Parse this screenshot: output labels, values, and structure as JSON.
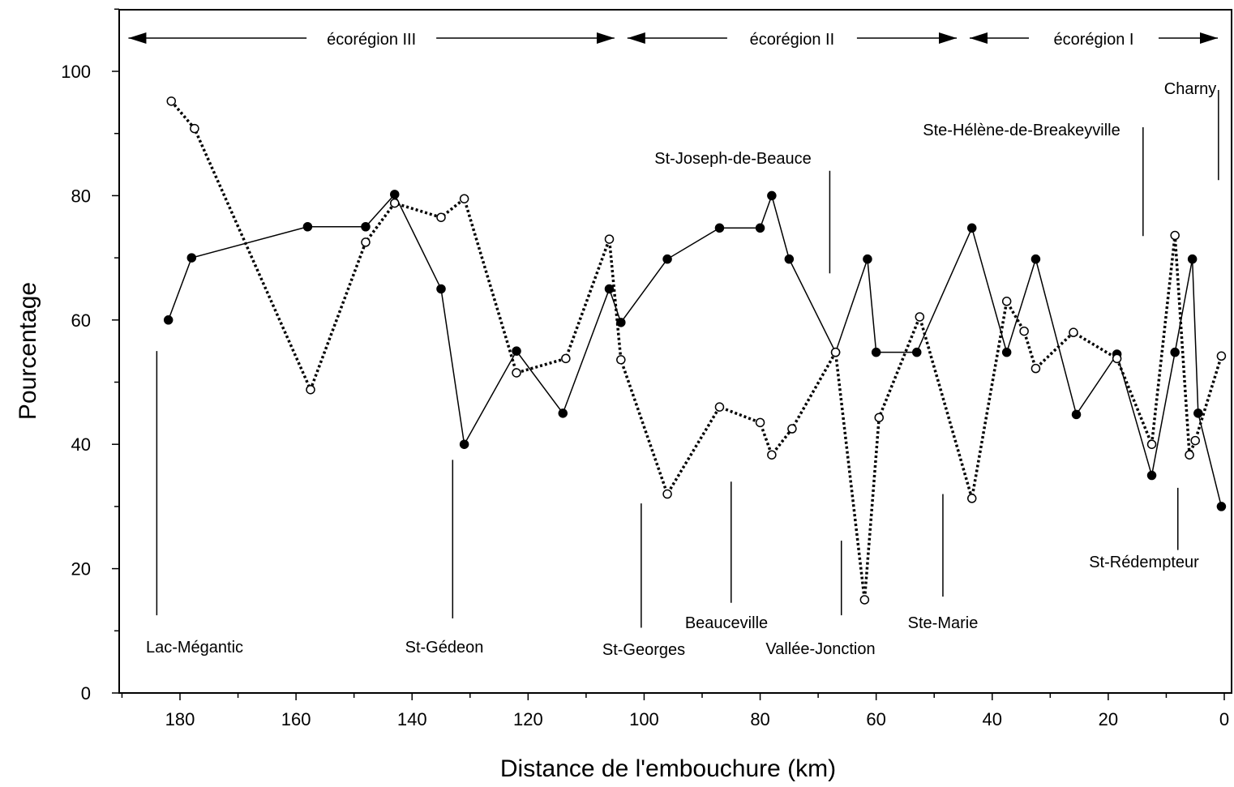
{
  "chart_data": {
    "type": "line",
    "title": "",
    "xlabel": "Distance de l'embouchure (km)",
    "ylabel": "Pourcentage",
    "xlim": [
      190,
      0
    ],
    "ylim": [
      0,
      110
    ],
    "x_reversed": true,
    "x_ticks": [
      "180",
      "160",
      "140",
      "120",
      "100",
      "80",
      "60",
      "40",
      "20",
      "0"
    ],
    "y_ticks": [
      "0",
      "20",
      "40",
      "60",
      "80",
      "100"
    ],
    "grid": false,
    "series": [
      {
        "style": "solid line, filled circles",
        "color": "#000000",
        "x": [
          182,
          178,
          158,
          148,
          143,
          135,
          131,
          122,
          114,
          106,
          104,
          96,
          87,
          80,
          78,
          75,
          67,
          61.5,
          60,
          53,
          43.5,
          37.5,
          32.5,
          25.5,
          18.5,
          12.5,
          8.5,
          5.5,
          4.5,
          0.5
        ],
        "y": [
          60,
          70,
          75,
          75,
          80.2,
          65,
          40,
          55,
          45,
          65,
          59.6,
          69.8,
          74.8,
          74.8,
          80,
          69.8,
          54.8,
          69.8,
          54.8,
          54.8,
          74.8,
          54.8,
          69.8,
          44.8,
          54.5,
          35,
          54.8,
          69.8,
          45,
          30
        ]
      },
      {
        "style": "dotted line, open circles",
        "color": "#000000",
        "x": [
          181.5,
          177.5,
          157.5,
          148,
          143,
          135,
          131,
          122,
          113.5,
          106,
          104,
          96,
          87,
          80,
          78,
          74.5,
          67,
          62,
          59.5,
          52.5,
          43.5,
          37.5,
          34.5,
          32.5,
          26,
          18.5,
          12.5,
          8.5,
          6,
          5,
          0.5
        ],
        "y": [
          95.2,
          90.8,
          48.8,
          72.5,
          78.8,
          76.5,
          79.5,
          51.5,
          53.8,
          73,
          53.6,
          32,
          46,
          43.5,
          38.3,
          42.5,
          54.8,
          15,
          44.3,
          60.5,
          31.3,
          63,
          58.2,
          52.2,
          58,
          53.8,
          40,
          73.6,
          38.3,
          40.6,
          54.2
        ]
      }
    ],
    "regions": [
      {
        "label": "écorégion III",
        "from": 190,
        "to": 104
      },
      {
        "label": "écorégion II",
        "from": 104,
        "to": 45
      },
      {
        "label": "écorégion I",
        "from": 45,
        "to": 0
      }
    ],
    "annotations": [
      {
        "text": "Lac-Mégantic",
        "x": 184,
        "y_top": 55,
        "y_bottom": 12.5
      },
      {
        "text": "St-Gédeon",
        "x": 133,
        "y_top": 37.5,
        "y_bottom": 12
      },
      {
        "text": "St-Georges",
        "x": 100.5,
        "y_top": 30.5,
        "y_bottom": 10.5
      },
      {
        "text": "Beauceville",
        "x": 85,
        "y_top": 34,
        "y_bottom": 14.5
      },
      {
        "text": "St-Joseph-de-Beauce",
        "x": 68,
        "y_top": 84,
        "y_bottom": 67.5
      },
      {
        "text": "Vallée-Jonction",
        "x": 66,
        "y_top": 24.5,
        "y_bottom": 12.5
      },
      {
        "text": "Ste-Marie",
        "x": 48.5,
        "y_top": 32,
        "y_bottom": 15.5
      },
      {
        "text": "Ste-Hélène-de-Breakeyville",
        "x": 14,
        "y_top": 91,
        "y_bottom": 73.5
      },
      {
        "text": "St-Rédempteur",
        "x": 8,
        "y_top": 33,
        "y_bottom": 23
      },
      {
        "text": "Charny",
        "x": 1,
        "y_top": 97,
        "y_bottom": 82.5
      }
    ]
  }
}
